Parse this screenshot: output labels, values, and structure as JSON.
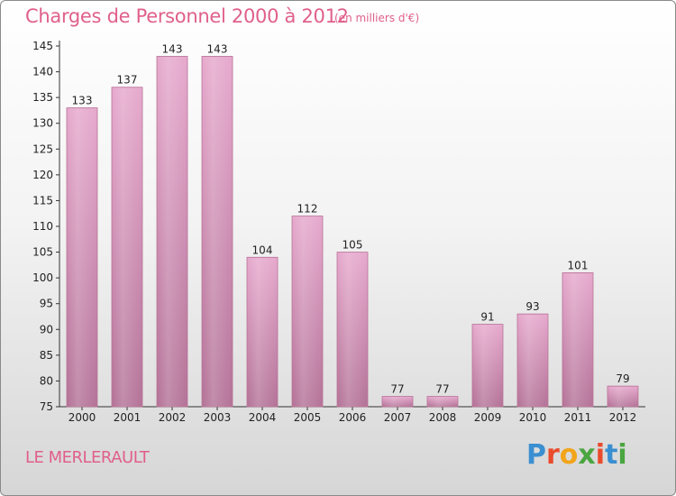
{
  "header": {
    "title": "Charges de Personnel 2000 à 2012",
    "unit": "(en milliers d'€)"
  },
  "footer": {
    "commune": "LE MERLERAULT",
    "logo_letters": [
      "P",
      "r",
      "o",
      "x",
      "i",
      "t",
      "i"
    ],
    "logo_colors": [
      "#3a8fd1",
      "#e94b2c",
      "#f2a51a",
      "#4aa640",
      "#e94b2c",
      "#3a8fd1",
      "#4aa640"
    ]
  },
  "chart_data": {
    "type": "bar",
    "title": "Charges de Personnel 2000 à 2012",
    "subtitle": "(en milliers d'€)",
    "categories": [
      "2000",
      "2001",
      "2002",
      "2003",
      "2004",
      "2005",
      "2006",
      "2007",
      "2008",
      "2009",
      "2010",
      "2011",
      "2012"
    ],
    "values": [
      133,
      137,
      143,
      143,
      104,
      112,
      105,
      77,
      77,
      91,
      93,
      101,
      79
    ],
    "ylim": [
      75,
      145
    ],
    "yticks": [
      75,
      80,
      85,
      90,
      95,
      100,
      105,
      110,
      115,
      120,
      125,
      130,
      135,
      140,
      145
    ],
    "grid": false,
    "bar_color": "#e0a3c6",
    "bar_edge_color": "#b87397"
  }
}
